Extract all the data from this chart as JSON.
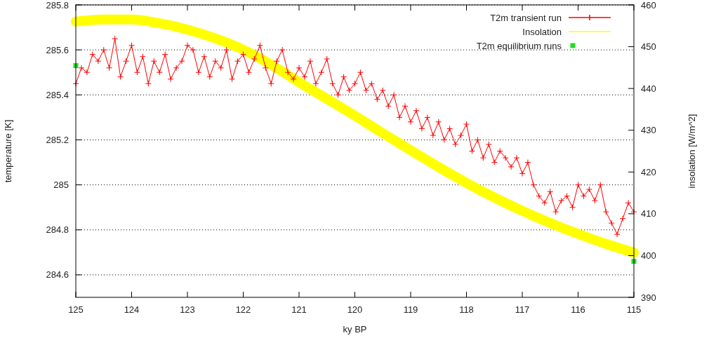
{
  "chart_data": {
    "type": "line",
    "xlabel": "ky BP",
    "ylabel": "temperature [K]",
    "y2label": "insolation [W/m^2]",
    "xlim": [
      125,
      115
    ],
    "xticks": [
      125,
      124,
      123,
      122,
      121,
      120,
      119,
      118,
      117,
      116,
      115
    ],
    "ylim": [
      284.5,
      285.8
    ],
    "yticks": [
      284.6,
      284.8,
      {
        "value": 285,
        "label": "285"
      },
      285.2,
      285.4,
      285.6,
      285.8
    ],
    "y2lim": [
      390,
      460
    ],
    "y2ticks": [
      390,
      400,
      410,
      420,
      430,
      440,
      450,
      460
    ],
    "grid": "y",
    "legend": "top right",
    "series": [
      {
        "name": "T2m transient run",
        "color": "#ff0000",
        "marker": "cross",
        "x": [
          125,
          124.9,
          124.8,
          124.7,
          124.6,
          124.5,
          124.4,
          124.3,
          124.2,
          124.1,
          124,
          123.9,
          123.8,
          123.7,
          123.6,
          123.5,
          123.4,
          123.3,
          123.2,
          123.1,
          123,
          122.9,
          122.8,
          122.7,
          122.6,
          122.5,
          122.4,
          122.3,
          122.2,
          122.1,
          122,
          121.9,
          121.8,
          121.7,
          121.6,
          121.5,
          121.4,
          121.3,
          121.2,
          121.1,
          121,
          120.9,
          120.8,
          120.7,
          120.6,
          120.5,
          120.4,
          120.3,
          120.2,
          120.1,
          120,
          119.9,
          119.8,
          119.7,
          119.6,
          119.5,
          119.4,
          119.3,
          119.2,
          119.1,
          119,
          118.9,
          118.8,
          118.7,
          118.6,
          118.5,
          118.4,
          118.3,
          118.2,
          118.1,
          118,
          117.9,
          117.8,
          117.7,
          117.6,
          117.5,
          117.4,
          117.3,
          117.2,
          117.1,
          117,
          116.9,
          116.8,
          116.7,
          116.6,
          116.5,
          116.4,
          116.3,
          116.2,
          116.1,
          116,
          115.9,
          115.8,
          115.7,
          115.6,
          115.5,
          115.4,
          115.3,
          115.2,
          115.1,
          115
        ],
        "values": [
          285.45,
          285.52,
          285.5,
          285.58,
          285.55,
          285.6,
          285.52,
          285.65,
          285.48,
          285.55,
          285.62,
          285.5,
          285.57,
          285.45,
          285.55,
          285.5,
          285.58,
          285.47,
          285.52,
          285.55,
          285.62,
          285.6,
          285.5,
          285.57,
          285.48,
          285.55,
          285.52,
          285.6,
          285.47,
          285.55,
          285.58,
          285.5,
          285.56,
          285.62,
          285.52,
          285.45,
          285.55,
          285.6,
          285.5,
          285.47,
          285.52,
          285.48,
          285.55,
          285.45,
          285.5,
          285.56,
          285.45,
          285.4,
          285.48,
          285.42,
          285.45,
          285.5,
          285.42,
          285.45,
          285.38,
          285.42,
          285.35,
          285.4,
          285.3,
          285.35,
          285.28,
          285.33,
          285.25,
          285.3,
          285.22,
          285.28,
          285.2,
          285.25,
          285.18,
          285.22,
          285.27,
          285.15,
          285.2,
          285.12,
          285.18,
          285.1,
          285.15,
          285.12,
          285.08,
          285.12,
          285.05,
          285.1,
          285,
          284.95,
          284.92,
          284.97,
          284.88,
          284.93,
          284.95,
          284.9,
          285,
          284.95,
          284.98,
          284.93,
          285,
          284.88,
          284.83,
          284.78,
          284.85,
          284.92,
          284.88
        ]
      },
      {
        "name": "Insolation",
        "color": "#ffff00",
        "axis": "y2",
        "x": [
          125,
          124.5,
          124,
          123.5,
          123,
          122.5,
          122,
          121.5,
          121,
          120.5,
          120,
          119.5,
          119,
          118.5,
          118,
          117.5,
          117,
          116.5,
          116,
          115.5,
          115
        ],
        "values": [
          456,
          456.5,
          456.5,
          455.6,
          454.1,
          452,
          449.3,
          445.7,
          441.5,
          437.5,
          433.5,
          429.3,
          425.2,
          421.2,
          417.4,
          413.9,
          410.7,
          407.8,
          405.2,
          402.8,
          400.7
        ]
      },
      {
        "name": "T2m equilibrium runs",
        "type": "scatter",
        "color": "#22dd22",
        "marker": "square",
        "x": [
          125,
          115
        ],
        "values": [
          285.53,
          284.66
        ]
      }
    ]
  }
}
